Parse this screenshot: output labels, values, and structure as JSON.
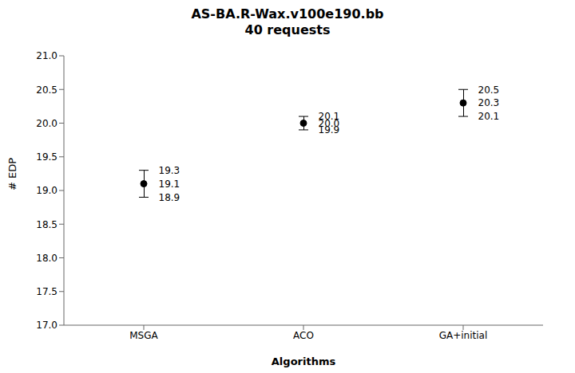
{
  "chart_data": {
    "type": "scatter",
    "title": "AS-BA.R-Wax.v100e190.bb",
    "subtitle": "40 requests",
    "x_label": "Algorithms",
    "y_label": "# EDP",
    "categories": [
      "MSGA",
      "ACO",
      "GA+initial"
    ],
    "values": [
      19.1,
      20.0,
      20.3
    ],
    "value_labels": [
      "19.1",
      "20.0",
      "20.3"
    ],
    "ci_upper": [
      19.3,
      20.1,
      20.5
    ],
    "ci_lower": [
      18.9,
      19.9,
      20.1
    ],
    "color": "black",
    "marker": "circle",
    "data_labels": true,
    "grid": false,
    "ylim": [
      17.0,
      21.0
    ],
    "yticks": [
      {
        "value": 17.0,
        "label": "17.0"
      },
      {
        "value": 17.5,
        "label": "17.5"
      },
      {
        "value": 18.0,
        "label": "18.0"
      },
      {
        "value": 18.5,
        "label": "18.5"
      },
      {
        "value": 19.0,
        "label": "19.0"
      },
      {
        "value": 19.5,
        "label": "19.5"
      },
      {
        "value": 20.0,
        "label": "20.0"
      },
      {
        "value": 20.5,
        "label": "20.5"
      },
      {
        "value": 21.0,
        "label": "21.0"
      }
    ]
  }
}
